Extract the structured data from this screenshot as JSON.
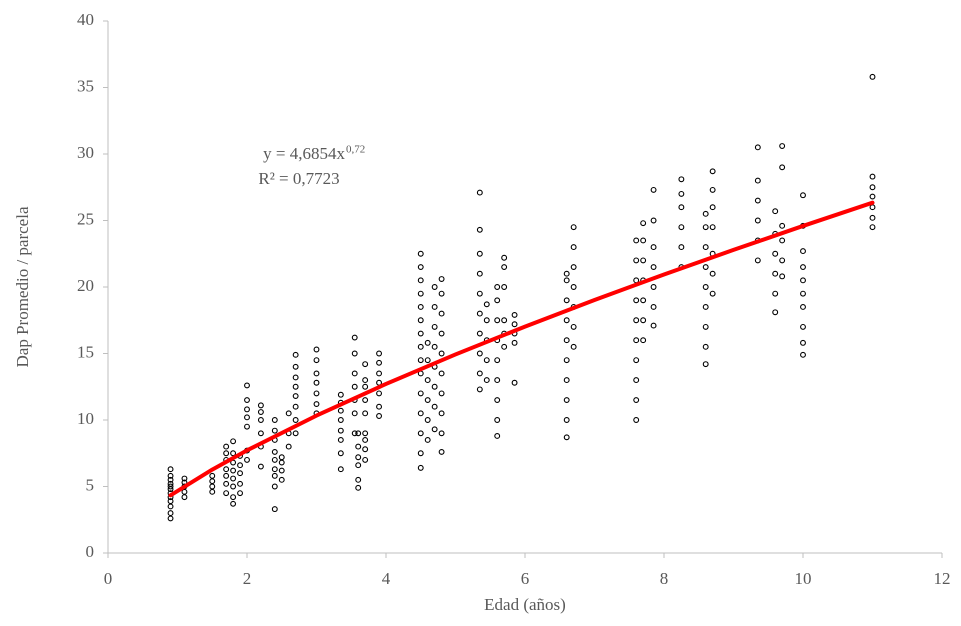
{
  "chart_data": {
    "type": "scatter",
    "x_label": "Edad (años)",
    "y_label": "Dap Promedio / parcela",
    "annotations": [
      "y = 4,6854x",
      "0,72",
      "R² = 0,7723"
    ],
    "xlim": [
      0,
      12
    ],
    "xticks": [
      0,
      2,
      4,
      6,
      8,
      10,
      12
    ],
    "ylim": [
      0,
      40
    ],
    "yticks": [
      0,
      5,
      10,
      15,
      20,
      25,
      30,
      35,
      40
    ],
    "axis_color": "#bfbfbf",
    "series": [
      {
        "mode": "markers",
        "color": "#000000",
        "x": [
          0.9,
          0.9,
          0.9,
          0.9,
          0.9,
          0.9,
          0.9,
          0.9,
          0.9,
          0.9,
          0.9,
          0.9,
          1.1,
          1.1,
          1.1,
          1.1,
          1.1,
          1.5,
          1.5,
          1.5,
          1.5,
          1.7,
          1.7,
          1.7,
          1.7,
          1.7,
          1.7,
          1.7,
          1.8,
          1.8,
          1.8,
          1.8,
          1.8,
          1.8,
          1.8,
          1.8,
          1.9,
          1.9,
          1.9,
          1.9,
          1.9,
          2.0,
          2.0,
          2.0,
          2.0,
          2.0,
          2.0,
          2.0,
          2.2,
          2.2,
          2.2,
          2.2,
          2.2,
          2.2,
          2.4,
          2.4,
          2.4,
          2.4,
          2.4,
          2.4,
          2.4,
          2.4,
          2.4,
          2.5,
          2.5,
          2.5,
          2.5,
          2.6,
          2.6,
          2.6,
          2.7,
          2.7,
          2.7,
          2.7,
          2.7,
          2.7,
          2.7,
          2.7,
          3.0,
          3.0,
          3.0,
          3.0,
          3.0,
          3.0,
          3.0,
          3.35,
          3.35,
          3.35,
          3.35,
          3.35,
          3.35,
          3.35,
          3.35,
          3.55,
          3.55,
          3.55,
          3.55,
          3.55,
          3.55,
          3.55,
          3.6,
          3.6,
          3.6,
          3.6,
          3.6,
          3.6,
          3.7,
          3.7,
          3.7,
          3.7,
          3.7,
          3.7,
          3.7,
          3.7,
          3.7,
          3.9,
          3.9,
          3.9,
          3.9,
          3.9,
          3.9,
          3.9,
          4.5,
          4.5,
          4.5,
          4.5,
          4.5,
          4.5,
          4.5,
          4.5,
          4.5,
          4.5,
          4.5,
          4.5,
          4.5,
          4.5,
          4.5,
          4.6,
          4.6,
          4.6,
          4.6,
          4.6,
          4.6,
          4.7,
          4.7,
          4.7,
          4.7,
          4.7,
          4.7,
          4.7,
          4.7,
          4.8,
          4.8,
          4.8,
          4.8,
          4.8,
          4.8,
          4.8,
          4.8,
          4.8,
          4.8,
          5.35,
          5.35,
          5.35,
          5.35,
          5.35,
          5.35,
          5.35,
          5.35,
          5.35,
          5.35,
          5.45,
          5.45,
          5.45,
          5.45,
          5.45,
          5.6,
          5.6,
          5.6,
          5.6,
          5.6,
          5.6,
          5.6,
          5.6,
          5.6,
          5.7,
          5.7,
          5.7,
          5.7,
          5.7,
          5.7,
          5.85,
          5.85,
          5.85,
          5.85,
          5.85,
          6.6,
          6.6,
          6.6,
          6.6,
          6.6,
          6.6,
          6.6,
          6.6,
          6.6,
          6.6,
          6.7,
          6.7,
          6.7,
          6.7,
          6.7,
          6.7,
          6.7,
          7.6,
          7.6,
          7.6,
          7.6,
          7.6,
          7.6,
          7.6,
          7.6,
          7.6,
          7.6,
          7.7,
          7.7,
          7.7,
          7.7,
          7.7,
          7.7,
          7.7,
          7.85,
          7.85,
          7.85,
          7.85,
          7.85,
          7.85,
          7.85,
          8.25,
          8.25,
          8.25,
          8.25,
          8.25,
          8.25,
          8.6,
          8.6,
          8.6,
          8.6,
          8.6,
          8.6,
          8.6,
          8.6,
          8.6,
          8.7,
          8.7,
          8.7,
          8.7,
          8.7,
          8.7,
          8.7,
          9.35,
          9.35,
          9.35,
          9.35,
          9.35,
          9.35,
          9.6,
          9.6,
          9.6,
          9.6,
          9.6,
          9.6,
          9.7,
          9.7,
          9.7,
          9.7,
          9.7,
          9.7,
          10.0,
          10.0,
          10.0,
          10.0,
          10.0,
          10.0,
          10.0,
          10.0,
          10.0,
          10.0,
          11.0,
          11.0,
          11.0,
          11.0,
          11.0,
          11.0,
          11.0
        ],
        "values": [
          2.6,
          3.0,
          3.5,
          3.9,
          4.2,
          4.5,
          4.8,
          5.0,
          5.2,
          5.5,
          5.8,
          6.3,
          4.2,
          4.6,
          5.0,
          5.3,
          5.6,
          4.6,
          5.0,
          5.4,
          5.8,
          4.5,
          5.2,
          5.8,
          6.3,
          7.0,
          7.5,
          8.0,
          3.7,
          4.2,
          5.0,
          5.6,
          6.2,
          6.8,
          7.5,
          8.4,
          4.5,
          5.2,
          6.0,
          6.6,
          7.3,
          9.5,
          10.2,
          10.8,
          11.5,
          12.6,
          7.0,
          7.7,
          6.5,
          8.0,
          9.0,
          10.0,
          10.6,
          11.1,
          3.3,
          5.0,
          5.8,
          6.3,
          7.0,
          7.6,
          8.5,
          9.2,
          10.0,
          5.5,
          6.2,
          6.8,
          7.2,
          8.0,
          9.0,
          10.5,
          9.0,
          10.0,
          11.0,
          11.8,
          12.5,
          13.2,
          14.0,
          14.9,
          10.5,
          11.2,
          12.0,
          12.8,
          13.5,
          14.5,
          15.3,
          6.3,
          7.5,
          8.5,
          9.2,
          10.0,
          10.7,
          11.3,
          11.9,
          9.0,
          10.5,
          11.5,
          12.5,
          13.5,
          15.0,
          16.2,
          4.9,
          5.5,
          6.6,
          7.2,
          8.0,
          9.0,
          7.0,
          7.8,
          8.5,
          9.0,
          10.5,
          11.5,
          12.5,
          13.0,
          14.2,
          10.3,
          11.0,
          12.0,
          12.8,
          13.5,
          14.3,
          15.0,
          6.4,
          7.5,
          9.0,
          10.5,
          12.0,
          13.5,
          14.5,
          15.5,
          16.5,
          17.5,
          18.5,
          19.5,
          20.5,
          21.5,
          22.5,
          8.5,
          10.0,
          11.5,
          13.0,
          14.5,
          15.8,
          9.3,
          11.0,
          12.5,
          14.0,
          15.5,
          17.0,
          18.5,
          20.0,
          7.6,
          9.0,
          10.5,
          12.0,
          13.5,
          15.0,
          16.5,
          18.0,
          19.5,
          20.6,
          12.3,
          13.5,
          15.0,
          16.5,
          18.0,
          19.5,
          21.0,
          22.5,
          24.3,
          27.1,
          13.0,
          14.5,
          16.0,
          17.5,
          18.7,
          8.8,
          10.0,
          11.5,
          13.0,
          14.5,
          16.0,
          17.5,
          19.0,
          20.0,
          15.5,
          16.5,
          17.5,
          20.0,
          21.5,
          22.2,
          12.8,
          15.8,
          16.5,
          17.2,
          17.9,
          8.7,
          10.0,
          11.5,
          13.0,
          14.5,
          16.0,
          17.5,
          19.0,
          20.5,
          21.0,
          15.5,
          17.0,
          18.5,
          20.0,
          21.5,
          23.0,
          24.5,
          10.0,
          11.5,
          13.0,
          14.5,
          16.0,
          17.5,
          19.0,
          20.5,
          22.0,
          23.5,
          16.0,
          17.5,
          19.0,
          20.5,
          22.0,
          23.5,
          24.8,
          17.1,
          18.5,
          20.0,
          21.5,
          23.0,
          25.0,
          27.3,
          21.5,
          23.0,
          24.5,
          26.0,
          27.0,
          28.1,
          14.2,
          15.5,
          17.0,
          18.5,
          20.0,
          21.5,
          23.0,
          24.5,
          25.5,
          19.5,
          21.0,
          22.5,
          24.5,
          26.0,
          27.3,
          28.7,
          22.0,
          23.5,
          25.0,
          26.5,
          28.0,
          30.5,
          18.1,
          19.5,
          21.0,
          22.5,
          24.0,
          25.7,
          20.8,
          22.0,
          23.5,
          24.6,
          29.0,
          30.6,
          14.9,
          15.8,
          17.0,
          18.5,
          19.5,
          20.5,
          21.5,
          22.7,
          24.6,
          26.9,
          24.5,
          25.2,
          26.0,
          26.8,
          27.5,
          28.3,
          35.8
        ]
      },
      {
        "mode": "line",
        "color": "#ff0000",
        "x": [
          0.9,
          1.5,
          2,
          3,
          4,
          5,
          6,
          7,
          8,
          9,
          10,
          11
        ],
        "values": [
          4.34,
          6.27,
          7.72,
          10.33,
          12.71,
          14.93,
          17.02,
          19.02,
          20.94,
          22.79,
          24.59,
          26.34
        ]
      }
    ]
  }
}
